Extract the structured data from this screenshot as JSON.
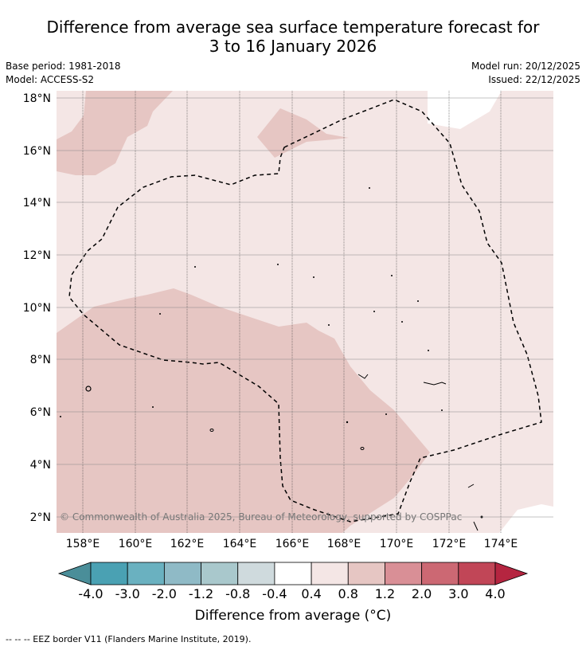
{
  "header": {
    "title_line1": "Difference from average sea surface temperature forecast for",
    "title_line2": "3 to 16 January 2026",
    "base_period": "Base period: 1981-2018",
    "model": "Model: ACCESS-S2",
    "model_run": "Model run: 20/12/2025",
    "issued": "Issued: 22/12/2025"
  },
  "map": {
    "lat_labels": [
      "18°N",
      "16°N",
      "14°N",
      "12°N",
      "10°N",
      "8°N",
      "6°N",
      "4°N",
      "2°N"
    ],
    "lon_labels": [
      "158°E",
      "160°E",
      "162°E",
      "164°E",
      "166°E",
      "168°E",
      "170°E",
      "172°E",
      "174°E"
    ],
    "copyright": "© Commonwealth of Australia 2025, Bureau of Meteorology, supported by COSPPac",
    "colors": {
      "anomaly_0_4_0_8": "#f4e6e5",
      "anomaly_0_8_1_2": "#e6c6c3",
      "no_anomaly": "#ffffff"
    }
  },
  "colorbar": {
    "tick_labels": [
      "-4.0",
      "-3.0",
      "-2.0",
      "-1.2",
      "-0.8",
      "-0.4",
      "0.4",
      "0.8",
      "1.2",
      "2.0",
      "3.0",
      "4.0"
    ],
    "colors": [
      "#4a8e99",
      "#4aa1b3",
      "#6ab1c0",
      "#8fbac6",
      "#a9c8cc",
      "#cfdadd",
      "#ffffff",
      "#f4e6e5",
      "#e6c6c3",
      "#d98f96",
      "#cc6873",
      "#c14657",
      "#b52540"
    ],
    "title": "Difference from average (°C)"
  },
  "footnote": "--  --  -- EEZ border V11 (Flanders Marine Institute, 2019)."
}
